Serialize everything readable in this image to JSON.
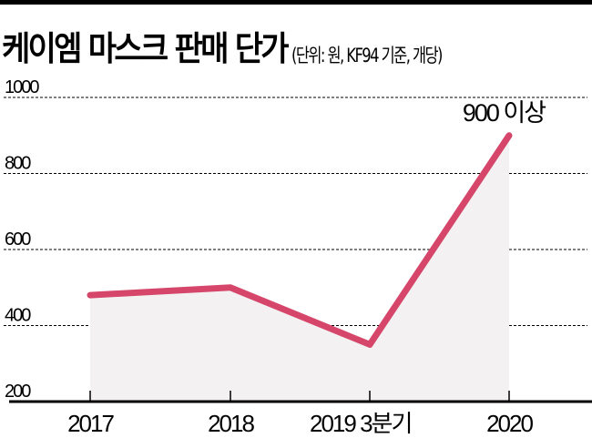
{
  "header": {
    "title": "케이엠 마스크 판매 단가",
    "subtitle": "(단위: 원, KF94 기준, 개당)"
  },
  "annotation": "900 이상",
  "colors": {
    "line": "#d6466a",
    "fill": "#f3f1f2",
    "grid": "#000000",
    "axis": "#000000"
  },
  "chart_data": {
    "type": "area",
    "title": "케이엠 마스크 판매 단가",
    "subtitle": "(단위: 원, KF94 기준, 개당)",
    "categories": [
      "2017",
      "2018",
      "2019 3분기",
      "2020"
    ],
    "series": [
      {
        "name": "판매 단가 (원)",
        "values": [
          480,
          500,
          350,
          900
        ]
      }
    ],
    "annotations": [
      {
        "x": "2020",
        "text": "900 이상"
      }
    ],
    "xlabel": "",
    "ylabel": "원",
    "yticks": [
      200,
      400,
      600,
      800,
      1000
    ],
    "ylim": [
      200,
      1000
    ],
    "grid": "horizontal dashed",
    "legend": "none"
  }
}
